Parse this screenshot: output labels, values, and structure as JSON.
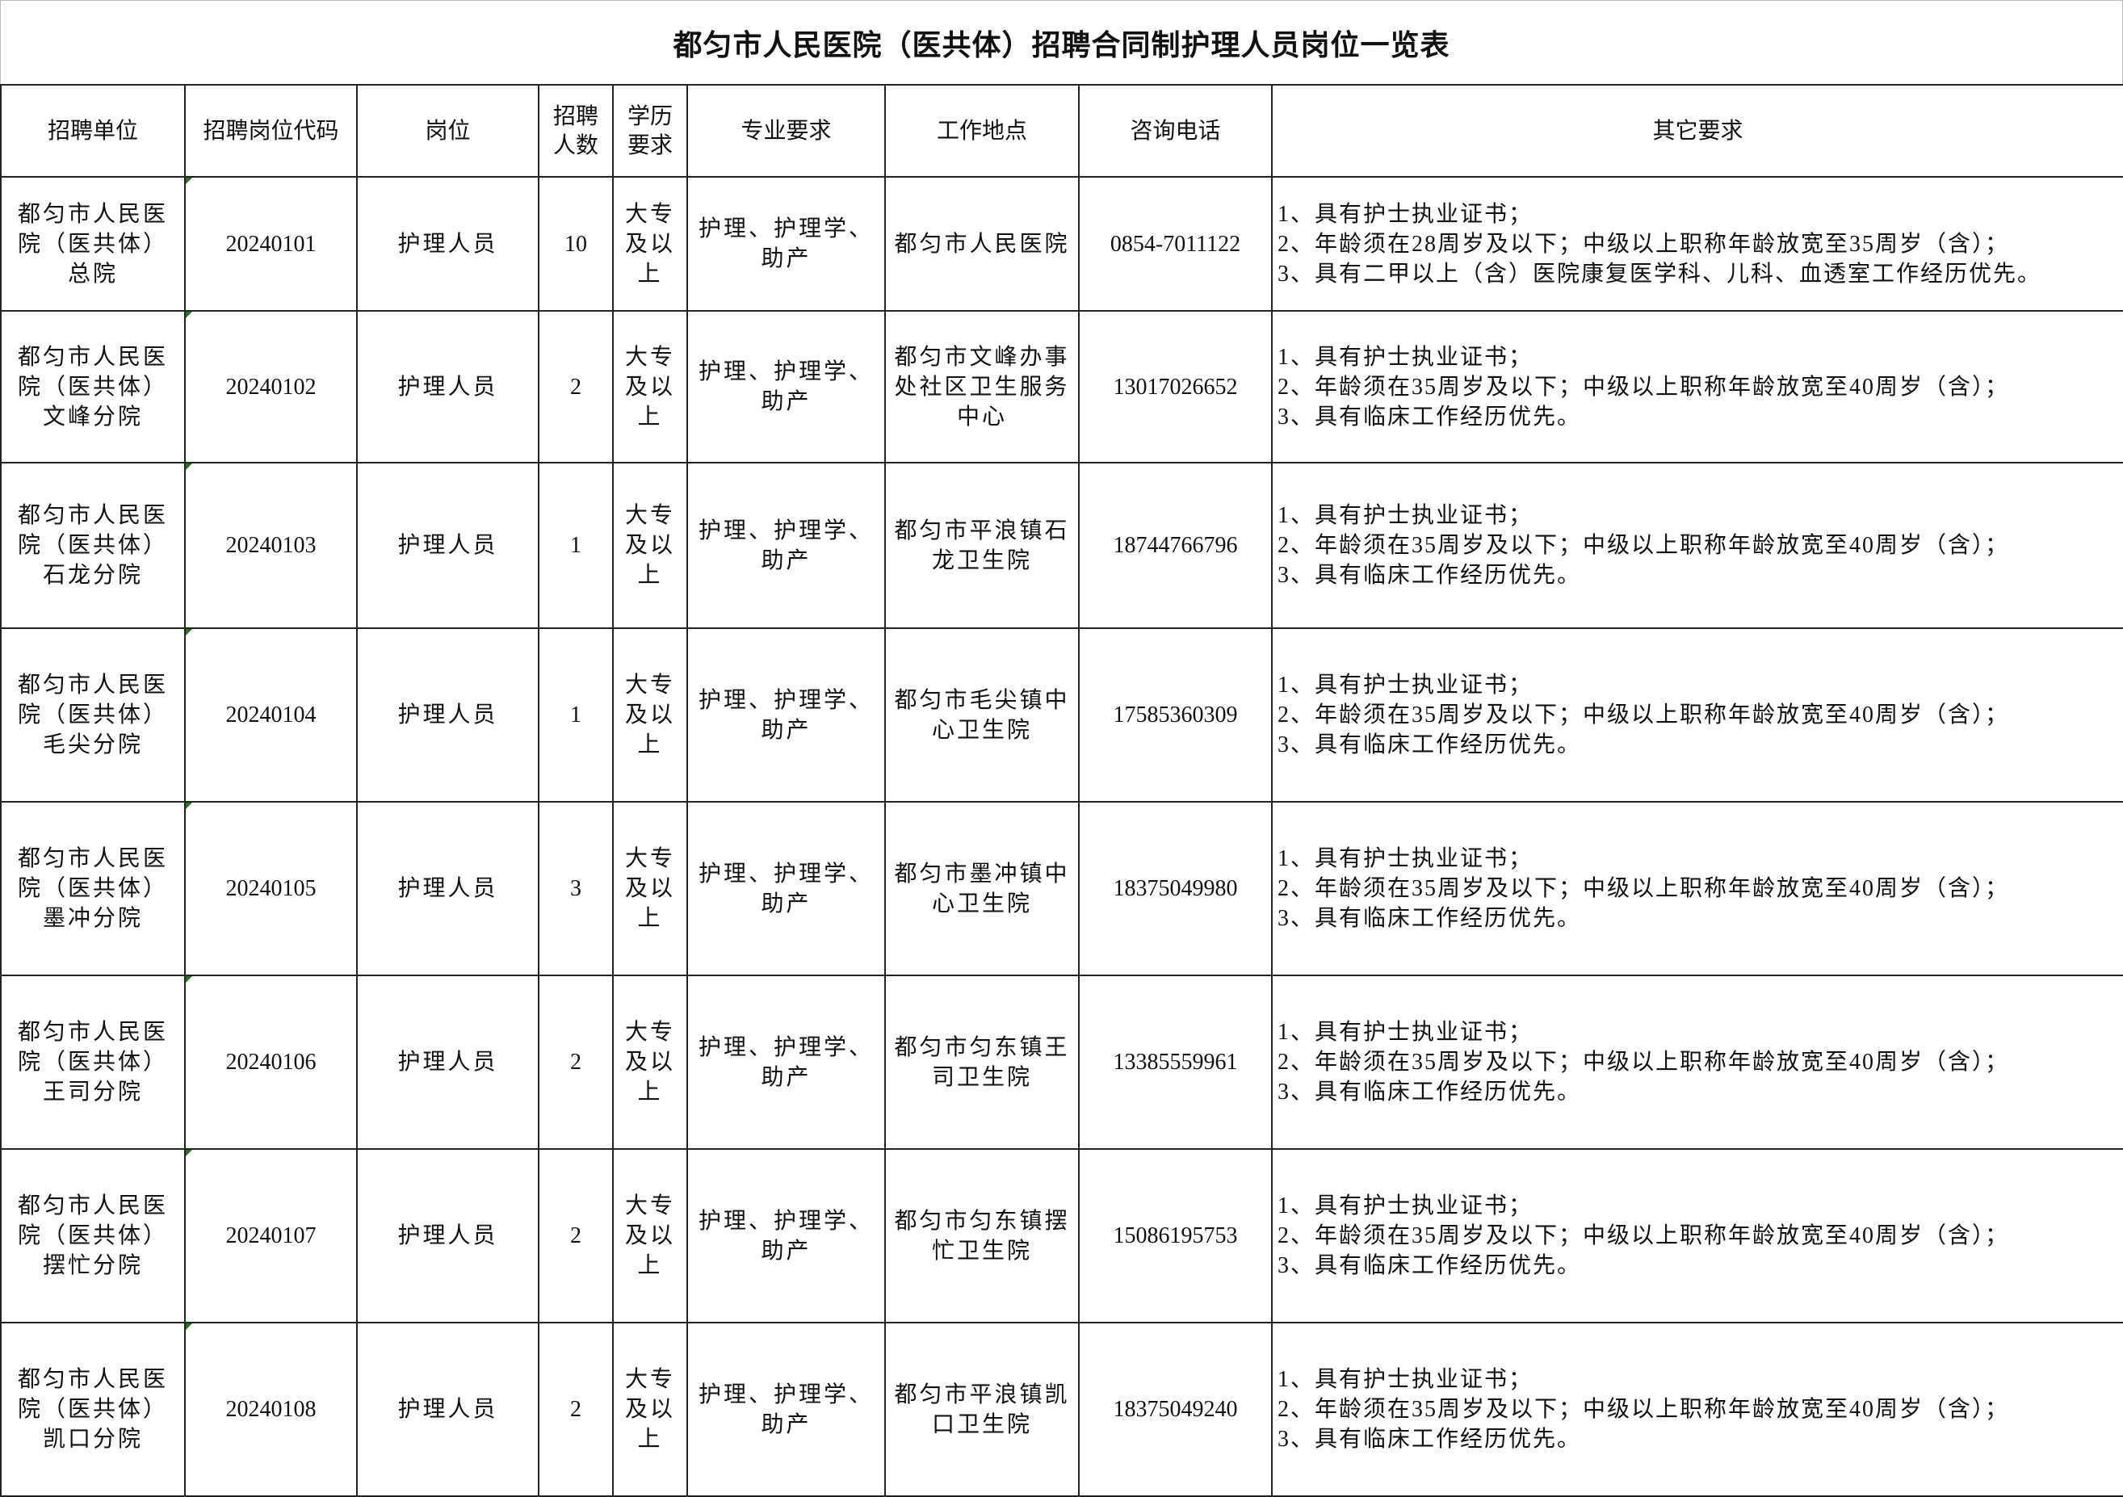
{
  "title": "都匀市人民医院（医共体）招聘合同制护理人员岗位一览表",
  "headers": [
    "招聘单位",
    "招聘岗位代码",
    "岗位",
    "招聘人数",
    "学历要求",
    "专业要求",
    "工作地点",
    "咨询电话",
    "其它要求"
  ],
  "rows": [
    {
      "unit": "都匀市人民医院（医共体）总院",
      "code": "20240101",
      "position": "护理人员",
      "count": "10",
      "education": "大专及以上",
      "major": "护理、护理学、助产",
      "location": "都匀市人民医院",
      "phone": "0854-7011122",
      "req": [
        "1、具有护士执业证书；",
        "2、年龄须在28周岁及以下；中级以上职称年龄放宽至35周岁（含）；",
        "3、具有二甲以上（含）医院康复医学科、儿科、血透室工作经历优先。"
      ]
    },
    {
      "unit": "都匀市人民医院（医共体）文峰分院",
      "code": "20240102",
      "position": "护理人员",
      "count": "2",
      "education": "大专及以上",
      "major": "护理、护理学、助产",
      "location": "都匀市文峰办事处社区卫生服务中心",
      "phone": "13017026652",
      "req": [
        "1、具有护士执业证书；",
        "2、年龄须在35周岁及以下；中级以上职称年龄放宽至40周岁（含）；",
        "3、具有临床工作经历优先。"
      ]
    },
    {
      "unit": "都匀市人民医院（医共体）石龙分院",
      "code": "20240103",
      "position": "护理人员",
      "count": "1",
      "education": "大专及以上",
      "major": "护理、护理学、助产",
      "location": "都匀市平浪镇石龙卫生院",
      "phone": "18744766796",
      "req": [
        "1、具有护士执业证书；",
        "2、年龄须在35周岁及以下；中级以上职称年龄放宽至40周岁（含）；",
        "3、具有临床工作经历优先。"
      ]
    },
    {
      "unit": "都匀市人民医院（医共体）毛尖分院",
      "code": "20240104",
      "position": "护理人员",
      "count": "1",
      "education": "大专及以上",
      "major": "护理、护理学、助产",
      "location": "都匀市毛尖镇中心卫生院",
      "phone": "17585360309",
      "req": [
        "1、具有护士执业证书；",
        "2、年龄须在35周岁及以下；中级以上职称年龄放宽至40周岁（含）；",
        "3、具有临床工作经历优先。"
      ]
    },
    {
      "unit": "都匀市人民医院（医共体）墨冲分院",
      "code": "20240105",
      "position": "护理人员",
      "count": "3",
      "education": "大专及以上",
      "major": "护理、护理学、助产",
      "location": "都匀市墨冲镇中心卫生院",
      "phone": "18375049980",
      "req": [
        "1、具有护士执业证书；",
        "2、年龄须在35周岁及以下；中级以上职称年龄放宽至40周岁（含）；",
        "3、具有临床工作经历优先。"
      ]
    },
    {
      "unit": "都匀市人民医院（医共体）王司分院",
      "code": "20240106",
      "position": "护理人员",
      "count": "2",
      "education": "大专及以上",
      "major": "护理、护理学、助产",
      "location": "都匀市匀东镇王司卫生院",
      "phone": "13385559961",
      "req": [
        "1、具有护士执业证书；",
        "2、年龄须在35周岁及以下；中级以上职称年龄放宽至40周岁（含）；",
        "3、具有临床工作经历优先。"
      ]
    },
    {
      "unit": "都匀市人民医院（医共体）摆忙分院",
      "code": "20240107",
      "position": "护理人员",
      "count": "2",
      "education": "大专及以上",
      "major": "护理、护理学、助产",
      "location": "都匀市匀东镇摆忙卫生院",
      "phone": "15086195753",
      "req": [
        "1、具有护士执业证书；",
        "2、年龄须在35周岁及以下；中级以上职称年龄放宽至40周岁（含）；",
        "3、具有临床工作经历优先。"
      ]
    },
    {
      "unit": "都匀市人民医院（医共体）凯口分院",
      "code": "20240108",
      "position": "护理人员",
      "count": "2",
      "education": "大专及以上",
      "major": "护理、护理学、助产",
      "location": "都匀市平浪镇凯口卫生院",
      "phone": "18375049240",
      "req": [
        "1、具有护士执业证书；",
        "2、年龄须在35周岁及以下；中级以上职称年龄放宽至40周岁（含）；",
        "3、具有临床工作经历优先。"
      ]
    }
  ]
}
